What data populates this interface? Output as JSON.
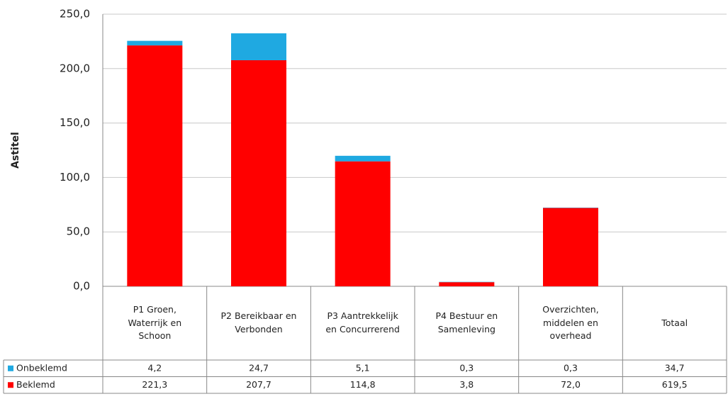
{
  "chart_data": {
    "type": "bar",
    "stacked": true,
    "y_axis_label": "Astitel",
    "categories": [
      "P1 Groen, Waterrijk en Schoon",
      "P2 Bereikbaar en Verbonden",
      "P3 Aantrekkelijk en Concurrerend",
      "P4 Bestuur en Samenleving",
      "Overzichten, middelen en overhead"
    ],
    "series": [
      {
        "name": "Onbeklemd",
        "color": "#1fa9e1",
        "values": [
          4.2,
          24.7,
          5.1,
          0.3,
          0.3
        ],
        "value_labels": [
          "4,2",
          "24,7",
          "5,1",
          "0,3",
          "0,3"
        ]
      },
      {
        "name": "Beklemd",
        "color": "#ff0000",
        "values": [
          221.3,
          207.7,
          114.8,
          3.8,
          72.0
        ],
        "value_labels": [
          "221,3",
          "207,7",
          "114,8",
          "3,8",
          "72,0"
        ]
      }
    ],
    "total": {
      "label": "Totaal",
      "values": [
        34.7,
        619.5
      ],
      "value_labels": [
        "34,7",
        "619,5"
      ]
    },
    "ylim": [
      0,
      250
    ],
    "yticks": [
      {
        "value": 0,
        "label": "0,0"
      },
      {
        "value": 50,
        "label": "50,0"
      },
      {
        "value": 100,
        "label": "100,0"
      },
      {
        "value": 150,
        "label": "150,0"
      },
      {
        "value": 200,
        "label": "200,0"
      },
      {
        "value": 250,
        "label": "250,0"
      }
    ],
    "grid": true
  }
}
